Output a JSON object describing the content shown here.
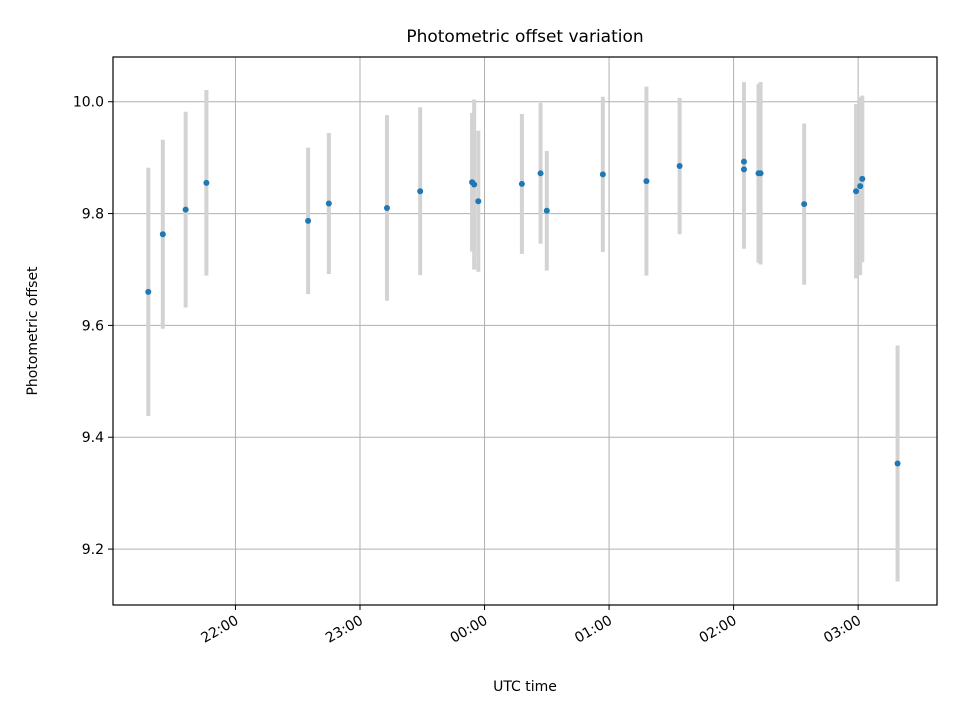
{
  "chart_data": {
    "type": "scatter",
    "title": "Photometric offset variation",
    "xlabel": "UTC time",
    "ylabel": "Photometric offset",
    "x_unit": "UTC HH:MM (times after midnight are the following day)",
    "xlim": [
      "21:01",
      "03:38"
    ],
    "ylim": [
      9.1,
      10.08
    ],
    "x_ticks": [
      "22:00",
      "23:00",
      "00:00",
      "01:00",
      "02:00",
      "03:00"
    ],
    "y_ticks": [
      9.2,
      9.4,
      9.6,
      9.8,
      10.0
    ],
    "y_tick_labels": [
      "9.2",
      "9.4",
      "9.6",
      "9.8",
      "10.0"
    ],
    "grid": true,
    "colors": {
      "marker": "#1f77b4",
      "errorbar": "#d3d3d3",
      "grid": "#b0b0b0"
    },
    "points": [
      {
        "x": "21:18",
        "y": 9.66,
        "err": 0.222
      },
      {
        "x": "21:25",
        "y": 9.763,
        "err": 0.169
      },
      {
        "x": "21:36",
        "y": 9.807,
        "err": 0.175
      },
      {
        "x": "21:46",
        "y": 9.855,
        "err": 0.166
      },
      {
        "x": "22:35",
        "y": 9.787,
        "err": 0.131
      },
      {
        "x": "22:45",
        "y": 9.818,
        "err": 0.126
      },
      {
        "x": "23:13",
        "y": 9.81,
        "err": 0.166
      },
      {
        "x": "23:29",
        "y": 9.84,
        "err": 0.15
      },
      {
        "x": "23:54",
        "y": 9.856,
        "err": 0.124
      },
      {
        "x": "23:55",
        "y": 9.852,
        "err": 0.152
      },
      {
        "x": "23:57",
        "y": 9.822,
        "err": 0.126
      },
      {
        "x": "00:18",
        "y": 9.853,
        "err": 0.125
      },
      {
        "x": "00:27",
        "y": 9.872,
        "err": 0.126
      },
      {
        "x": "00:30",
        "y": 9.805,
        "err": 0.107
      },
      {
        "x": "00:57",
        "y": 9.87,
        "err": 0.139
      },
      {
        "x": "01:18",
        "y": 9.858,
        "err": 0.169
      },
      {
        "x": "01:34",
        "y": 9.885,
        "err": 0.122
      },
      {
        "x": "02:05",
        "y": 9.893,
        "err": 0.142
      },
      {
        "x": "02:05",
        "y": 9.879,
        "err": 0.142
      },
      {
        "x": "02:12",
        "y": 9.872,
        "err": 0.16
      },
      {
        "x": "02:13",
        "y": 9.872,
        "err": 0.163
      },
      {
        "x": "02:34",
        "y": 9.817,
        "err": 0.144
      },
      {
        "x": "02:59",
        "y": 9.84,
        "err": 0.156
      },
      {
        "x": "03:01",
        "y": 9.849,
        "err": 0.159
      },
      {
        "x": "03:02",
        "y": 9.862,
        "err": 0.149
      },
      {
        "x": "03:19",
        "y": 9.353,
        "err": 0.211
      }
    ]
  }
}
